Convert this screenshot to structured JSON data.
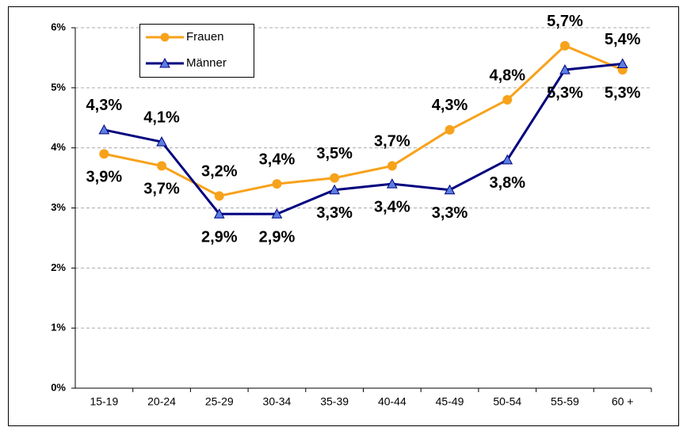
{
  "chart_data": {
    "type": "line",
    "categories": [
      "15-19",
      "20-24",
      "25-29",
      "30-34",
      "35-39",
      "40-44",
      "45-49",
      "50-54",
      "55-59",
      "60 +"
    ],
    "series": [
      {
        "name": "Frauen",
        "color": "#f7a21b",
        "marker": "circle",
        "values": [
          3.9,
          3.7,
          3.2,
          3.4,
          3.5,
          3.7,
          4.3,
          4.8,
          5.7,
          5.3
        ],
        "value_labels": [
          "3,9%",
          "3,7%",
          "3,2%",
          "3,4%",
          "3,5%",
          "3,7%",
          "4,3%",
          "4,8%",
          "5,7%",
          "5,3%"
        ]
      },
      {
        "name": "Männer",
        "color": "#00007f",
        "marker": "triangle",
        "values": [
          4.3,
          4.1,
          2.9,
          2.9,
          3.3,
          3.4,
          3.3,
          3.8,
          5.3,
          5.4
        ],
        "value_labels": [
          "4,3%",
          "4,1%",
          "2,9%",
          "2,9%",
          "3,3%",
          "3,4%",
          "3,3%",
          "3,8%",
          "5,3%",
          "5,4%"
        ]
      }
    ],
    "ylim": [
      0,
      6
    ],
    "yticks": [
      {
        "value": 0,
        "label": "0%"
      },
      {
        "value": 1,
        "label": "1%"
      },
      {
        "value": 2,
        "label": "2%"
      },
      {
        "value": 3,
        "label": "3%"
      },
      {
        "value": 4,
        "label": "4%"
      },
      {
        "value": 5,
        "label": "5%"
      },
      {
        "value": 6,
        "label": "6%"
      }
    ],
    "grid": true,
    "legend": "upper left"
  }
}
